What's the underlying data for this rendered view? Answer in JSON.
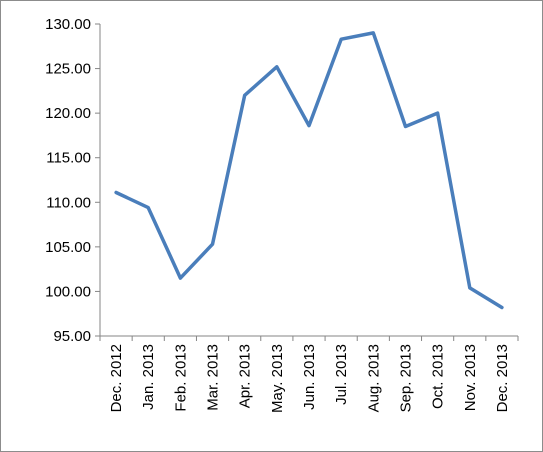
{
  "chart_data": {
    "type": "line",
    "title": "",
    "xlabel": "",
    "ylabel": "",
    "categories": [
      "Dec. 2012",
      "Jan. 2013",
      "Feb. 2013",
      "Mar. 2013",
      "Apr. 2013",
      "May. 2013",
      "Jun. 2013",
      "Jul. 2013",
      "Aug. 2013",
      "Sep. 2013",
      "Oct. 2013",
      "Nov. 2013",
      "Dec. 2013"
    ],
    "series": [
      {
        "values": [
          111.1,
          109.4,
          101.5,
          105.3,
          122.0,
          125.2,
          118.6,
          128.3,
          129.0,
          118.5,
          120.0,
          100.4,
          98.2
        ]
      }
    ],
    "ylim": [
      95,
      130
    ],
    "y_ticks": [
      95,
      100,
      105,
      110,
      115,
      120,
      125,
      130
    ],
    "y_tick_format": "2 decimals",
    "grid": false,
    "legend": "none",
    "line_color": "#4a7ebb",
    "axis_color": "#868686"
  }
}
